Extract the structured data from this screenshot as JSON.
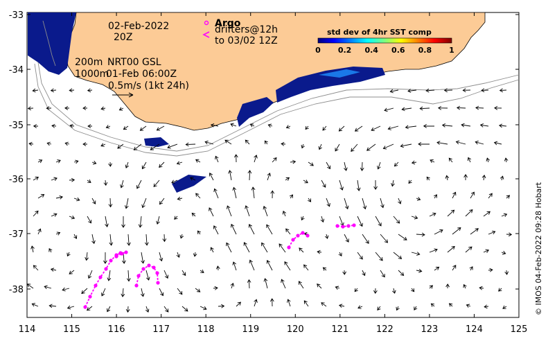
{
  "map": {
    "date_line1": "02-Feb-2022",
    "date_line2": "20Z",
    "legend_argo_label": "Argo",
    "legend_drifters_label": "drifters@12h",
    "legend_drifters_sub": "to 03/02 12Z",
    "isobath_label_200": "200m",
    "isobath_label_1000": "1000m",
    "product_label": "NRT00 GSL",
    "product_time": "01-Feb 06:00Z",
    "scale_label": "0.5m/s (1kt 24h)",
    "credit": "© IMOS 04-Feb-2022 09:28 Hobart",
    "colorbar": {
      "title": "std dev of 4hr SST comp",
      "ticks": [
        "0",
        "0.2",
        "0.4",
        "0.6",
        "0.8",
        "1"
      ],
      "colors": [
        "#00007f",
        "#0000ff",
        "#007fff",
        "#00ffff",
        "#7fff7f",
        "#ffff00",
        "#ff7f00",
        "#ff0000",
        "#7f0000"
      ]
    },
    "x_ticks": [
      "114",
      "115",
      "116",
      "117",
      "118",
      "119",
      "120",
      "121",
      "122",
      "123",
      "124",
      "125"
    ],
    "y_ticks": [
      "-33",
      "-34",
      "-35",
      "-36",
      "-37",
      "-38"
    ],
    "x_range": [
      114,
      125
    ],
    "y_range": [
      -38.5,
      -33
    ],
    "land_color": "#fccb96",
    "drifter_color": "#ff00ff"
  }
}
